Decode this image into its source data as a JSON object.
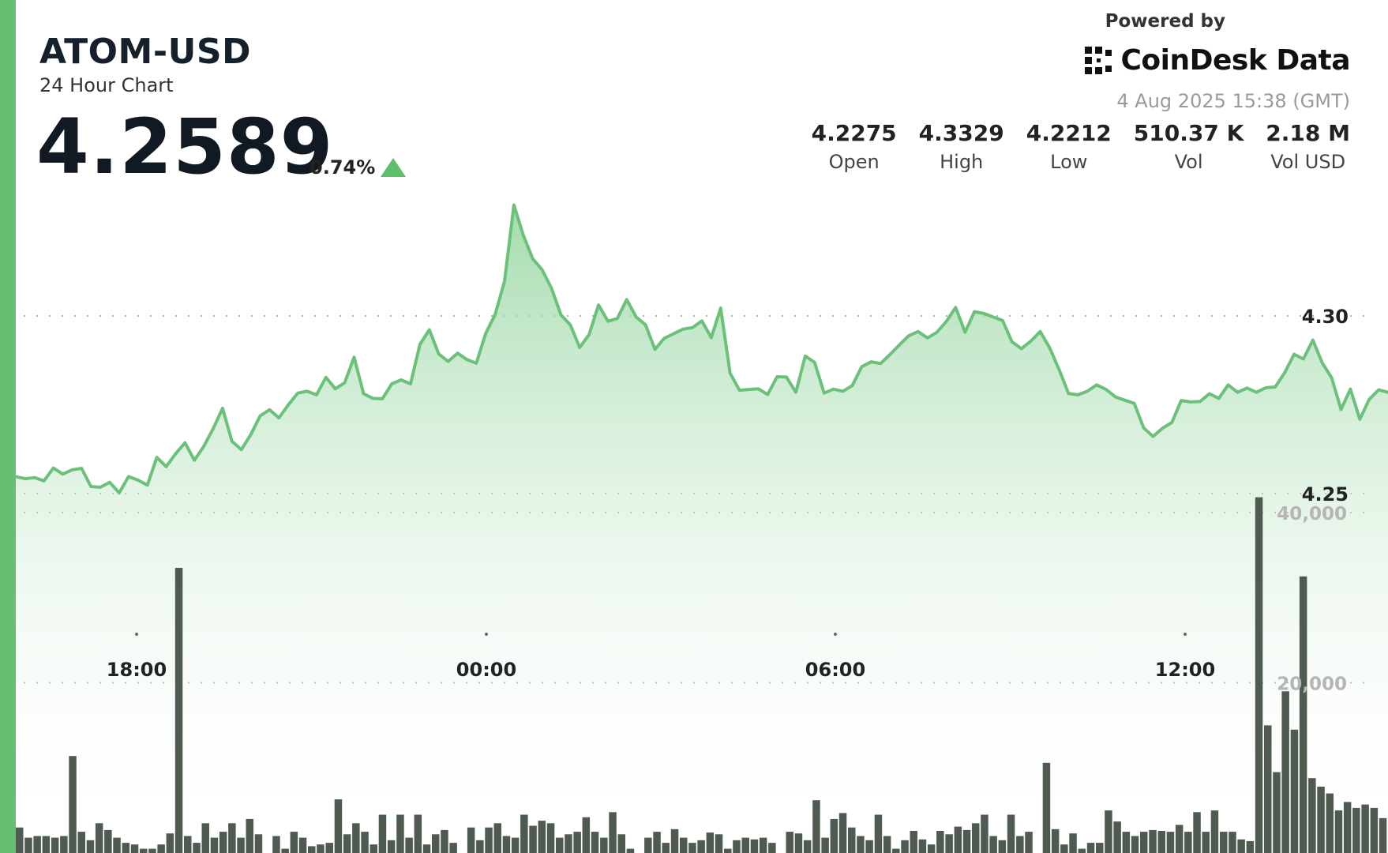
{
  "header": {
    "symbol": "ATOM-USD",
    "subtitle": "24 Hour Chart",
    "price": "4.2589",
    "change": "0.74%",
    "change_direction": "up"
  },
  "brand": {
    "powered_by": "Powered by",
    "name": "CoinDesk Data",
    "logo_icon": "coindesk-logo-icon"
  },
  "timestamp": "4 Aug 2025 15:38 (GMT)",
  "stats": [
    {
      "value": "4.2275",
      "label": "Open"
    },
    {
      "value": "4.3329",
      "label": "High"
    },
    {
      "value": "4.2212",
      "label": "Low"
    },
    {
      "value": "510.37 K",
      "label": "Vol"
    },
    {
      "value": "2.18 M",
      "label": "Vol USD"
    }
  ],
  "colors": {
    "accent": "#66bf72",
    "line": "#6cc17a",
    "area_top": "#8fd39a",
    "volume_bar": "#4f5b50",
    "volume_axis_text": "#b5b5b5"
  },
  "chart_data": {
    "type": "area",
    "price_axis": {
      "ticks": [
        4.25,
        4.3
      ],
      "tick_labels": [
        "4.25",
        "4.30"
      ],
      "range": [
        4.2212,
        4.3329
      ]
    },
    "volume_axis": {
      "ticks": [
        20000,
        40000
      ],
      "tick_labels": [
        "20,000",
        "40,000"
      ]
    },
    "time_axis": {
      "labels": [
        "18:00",
        "00:00",
        "06:00",
        "12:00"
      ]
    },
    "grid": "dotted horizontal",
    "price": [
      4.2548,
      4.2542,
      4.2545,
      4.2536,
      4.2572,
      4.2555,
      4.2567,
      4.2571,
      4.252,
      4.2518,
      4.2532,
      4.2502,
      4.2548,
      4.2538,
      4.2524,
      4.2602,
      4.2576,
      4.2612,
      4.2643,
      4.2594,
      4.2633,
      4.2683,
      4.274,
      4.2647,
      4.2624,
      4.2666,
      4.2719,
      4.2736,
      4.2713,
      4.275,
      4.2783,
      4.2788,
      4.2778,
      4.2827,
      4.2795,
      4.2812,
      4.2884,
      4.2781,
      4.2768,
      4.2767,
      4.2809,
      4.282,
      4.2809,
      4.292,
      4.2961,
      4.2893,
      4.2872,
      4.2895,
      4.2877,
      4.2867,
      4.2951,
      4.3004,
      4.3097,
      4.3312,
      4.3227,
      4.3161,
      4.313,
      4.3078,
      4.3003,
      4.2975,
      4.2911,
      4.2948,
      4.3031,
      4.2985,
      4.2993,
      4.3046,
      4.2997,
      4.2975,
      4.2906,
      4.2937,
      4.295,
      4.2963,
      4.2967,
      4.2986,
      4.2939,
      4.3022,
      4.2839,
      4.2791,
      4.2793,
      4.2795,
      4.2779,
      4.2829,
      4.2828,
      4.2785,
      4.2887,
      4.2869,
      4.2783,
      4.2794,
      4.2788,
      4.2804,
      4.2857,
      4.2871,
      4.2866,
      4.2891,
      4.2918,
      4.2944,
      4.2956,
      4.2938,
      4.2954,
      4.2984,
      4.3024,
      4.2954,
      4.3012,
      4.3007,
      4.2997,
      4.2987,
      4.2927,
      4.2908,
      4.2929,
      4.2956,
      4.291,
      4.2849,
      4.2782,
      4.2778,
      4.2788,
      4.2806,
      4.2793,
      4.2772,
      4.2763,
      4.2754,
      4.2685,
      4.2661,
      4.2684,
      4.27,
      4.2762,
      4.2758,
      4.2759,
      4.2781,
      4.2768,
      4.2806,
      4.2785,
      4.2797,
      4.2785,
      4.2798,
      4.28,
      4.284,
      4.2892,
      4.2879,
      4.2932,
      4.2868,
      4.2826,
      4.2737,
      4.2794,
      4.2709,
      4.2765,
      4.2792,
      4.2785
    ]
  }
}
